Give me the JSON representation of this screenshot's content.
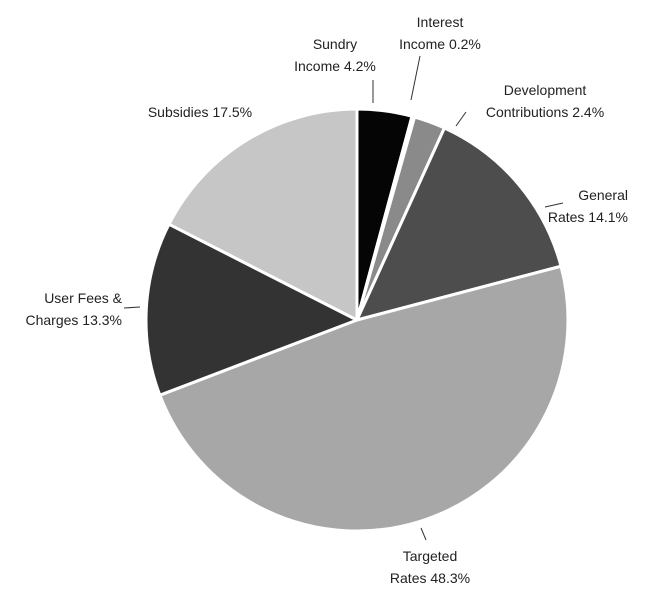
{
  "chart_data": {
    "type": "pie",
    "categories": [
      "Sundry Income",
      "Interest Income",
      "Development Contributions",
      "General Rates",
      "Targeted Rates",
      "User Fees & Charges",
      "Subsidies"
    ],
    "values": [
      4.2,
      0.2,
      2.4,
      14.1,
      48.3,
      13.3,
      17.5
    ],
    "value_labels": [
      "4.2%",
      "0.2%",
      "2.4%",
      "14.1%",
      "48.3%",
      "13.3%",
      "17.5%"
    ],
    "colors": [
      "#050505",
      "#5a5a5a",
      "#8a8a8a",
      "#4d4d4d",
      "#a7a7a7",
      "#333333",
      "#c6c6c6"
    ]
  }
}
